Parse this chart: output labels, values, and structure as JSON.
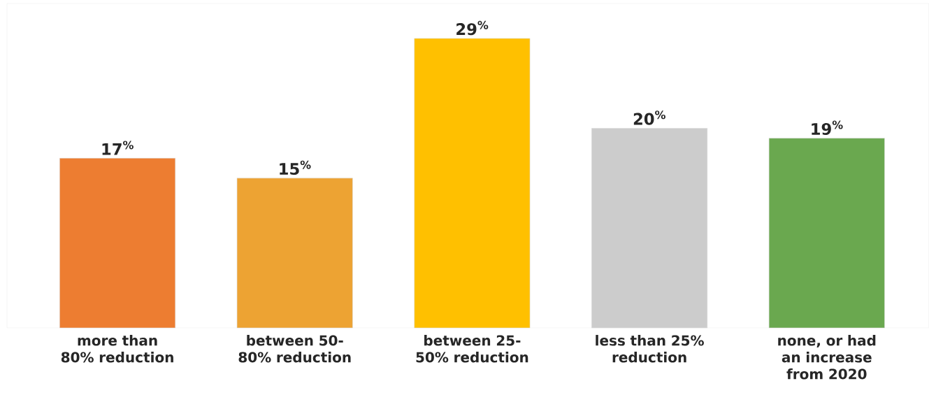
{
  "chart_data": {
    "type": "bar",
    "categories": [
      "more than 80% reduction",
      "between 50-80% reduction",
      "between 25-50% reduction",
      "less than 25% reduction",
      "none, or had an increase from 2020"
    ],
    "values": [
      17,
      15,
      29,
      20,
      19
    ],
    "colors": [
      "#ed7d31",
      "#eda333",
      "#ffc000",
      "#cccccc",
      "#6aa84f"
    ],
    "value_labels": [
      "17$^{%}$",
      "15$^{%}$",
      "29$^{%}$",
      "20$^{%}$",
      "19$^{%}$"
    ],
    "ylim": [
      0,
      32.5
    ]
  }
}
